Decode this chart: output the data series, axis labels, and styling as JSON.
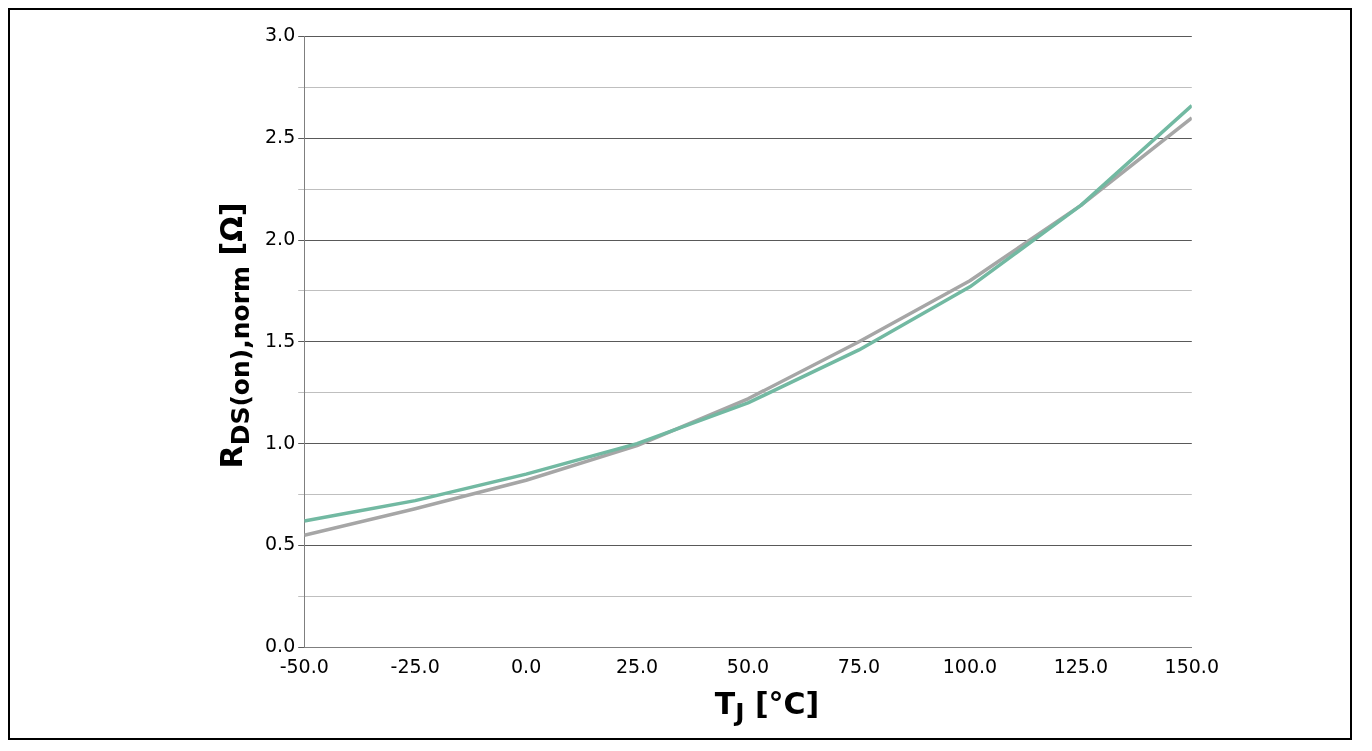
{
  "chart_data": {
    "type": "line",
    "xlabel": "T$_{J}$ [°C]",
    "ylabel": "R$_{DS(on),norm}$ [Ω]",
    "x": [
      -50,
      -25,
      0,
      25,
      50,
      75,
      100,
      125,
      150
    ],
    "series": [
      {
        "color": "#72b9a2",
        "values": [
          0.62,
          0.72,
          0.85,
          1.0,
          1.2,
          1.46,
          1.77,
          2.17,
          2.66
        ]
      },
      {
        "color": "#a6a6a6",
        "values": [
          0.55,
          0.68,
          0.82,
          0.99,
          1.22,
          1.5,
          1.8,
          2.17,
          2.6
        ]
      }
    ],
    "xlim": [
      -50,
      150
    ],
    "xticks": [
      {
        "value": -50,
        "label": "-50.0"
      },
      {
        "value": -25,
        "label": "-25.0"
      },
      {
        "value": 0,
        "label": "0.0"
      },
      {
        "value": 25,
        "label": "25.0"
      },
      {
        "value": 50,
        "label": "50.0"
      },
      {
        "value": 75,
        "label": "75.0"
      },
      {
        "value": 100,
        "label": "100.0"
      },
      {
        "value": 125,
        "label": "125.0"
      },
      {
        "value": 150,
        "label": "150.0"
      }
    ],
    "ylim": [
      0,
      3
    ],
    "yticks": [
      {
        "value": 0,
        "label": "0.0"
      },
      {
        "value": 0.25,
        "label": null
      },
      {
        "value": 0.5,
        "label": "0.5"
      },
      {
        "value": 0.75,
        "label": null
      },
      {
        "value": 1,
        "label": "1.0"
      },
      {
        "value": 1.25,
        "label": null
      },
      {
        "value": 1.5,
        "label": "1.5"
      },
      {
        "value": 1.75,
        "label": null
      },
      {
        "value": 2,
        "label": "2.0"
      },
      {
        "value": 2.25,
        "label": null
      },
      {
        "value": 2.5,
        "label": "2.5"
      },
      {
        "value": 2.75,
        "label": null
      },
      {
        "value": 3,
        "label": "3.0"
      }
    ],
    "grid": "y",
    "marker": "none",
    "line_style": "solid",
    "legend": false
  }
}
